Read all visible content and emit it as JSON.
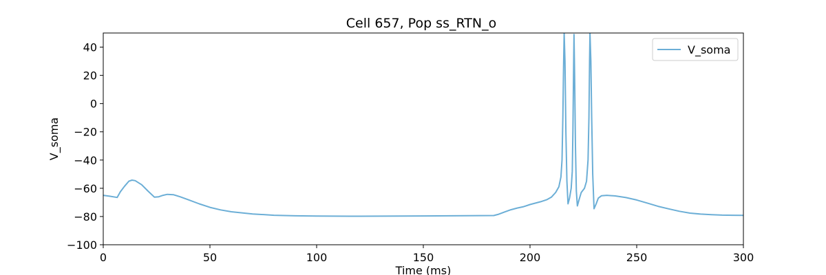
{
  "chart_data": {
    "type": "line",
    "title": "Cell 657, Pop ss_RTN_o",
    "xlabel": "Time (ms)",
    "ylabel": "V_soma",
    "xlim": [
      0,
      300
    ],
    "ylim": [
      -100,
      50
    ],
    "xticks": [
      0,
      50,
      100,
      150,
      200,
      250,
      300
    ],
    "yticks": [
      -100,
      -80,
      -60,
      -40,
      -20,
      0,
      20,
      40
    ],
    "grid": false,
    "legend_position": "top-right",
    "series": [
      {
        "name": "V_soma",
        "color": "#6baed6",
        "points": [
          [
            0,
            -65
          ],
          [
            3,
            -65.6
          ],
          [
            6.5,
            -66.5
          ],
          [
            8,
            -62.5
          ],
          [
            10,
            -58.5
          ],
          [
            12,
            -55
          ],
          [
            13.5,
            -54.2
          ],
          [
            15,
            -54.6
          ],
          [
            18,
            -57.5
          ],
          [
            21,
            -62
          ],
          [
            24,
            -66.3
          ],
          [
            26,
            -66
          ],
          [
            28,
            -65
          ],
          [
            30,
            -64.3
          ],
          [
            33,
            -64.6
          ],
          [
            36,
            -66
          ],
          [
            40,
            -68.2
          ],
          [
            45,
            -71
          ],
          [
            50,
            -73.5
          ],
          [
            55,
            -75.3
          ],
          [
            60,
            -76.6
          ],
          [
            70,
            -78.2
          ],
          [
            80,
            -79.1
          ],
          [
            90,
            -79.5
          ],
          [
            100,
            -79.7
          ],
          [
            120,
            -79.8
          ],
          [
            150,
            -79.6
          ],
          [
            170,
            -79.4
          ],
          [
            183,
            -79.3
          ],
          [
            185,
            -78.5
          ],
          [
            188,
            -76.8
          ],
          [
            191,
            -75.2
          ],
          [
            194,
            -74
          ],
          [
            197,
            -73
          ],
          [
            200,
            -71.5
          ],
          [
            205,
            -69.5
          ],
          [
            208,
            -68
          ],
          [
            210,
            -66.3
          ],
          [
            212,
            -63
          ],
          [
            213.5,
            -59
          ],
          [
            214.5,
            -52
          ],
          [
            215,
            -40
          ],
          [
            215.4,
            -10
          ],
          [
            215.7,
            25
          ],
          [
            216,
            50
          ],
          [
            216.4,
            30
          ],
          [
            216.8,
            -20
          ],
          [
            217.3,
            -55
          ],
          [
            217.8,
            -71
          ],
          [
            218.5,
            -67
          ],
          [
            219.3,
            -60
          ],
          [
            219.8,
            -48
          ],
          [
            220.1,
            -20
          ],
          [
            220.4,
            20
          ],
          [
            220.6,
            49
          ],
          [
            220.9,
            20
          ],
          [
            221.3,
            -30
          ],
          [
            221.7,
            -62
          ],
          [
            222.2,
            -72.5
          ],
          [
            223,
            -68
          ],
          [
            224,
            -63
          ],
          [
            225.5,
            -60
          ],
          [
            226.5,
            -55
          ],
          [
            227.2,
            -40
          ],
          [
            227.6,
            -10
          ],
          [
            227.9,
            30
          ],
          [
            228.1,
            50
          ],
          [
            228.5,
            30
          ],
          [
            228.9,
            -10
          ],
          [
            229.4,
            -50
          ],
          [
            230,
            -74.5
          ],
          [
            231,
            -71
          ],
          [
            232,
            -67
          ],
          [
            233.5,
            -65.3
          ],
          [
            236,
            -65
          ],
          [
            240,
            -65.4
          ],
          [
            245,
            -66.6
          ],
          [
            250,
            -68.3
          ],
          [
            255,
            -70.5
          ],
          [
            260,
            -72.8
          ],
          [
            265,
            -74.6
          ],
          [
            270,
            -76.3
          ],
          [
            275,
            -77.6
          ],
          [
            280,
            -78.3
          ],
          [
            285,
            -78.7
          ],
          [
            290,
            -79
          ],
          [
            295,
            -79.1
          ],
          [
            300,
            -79.2
          ]
        ]
      }
    ]
  }
}
